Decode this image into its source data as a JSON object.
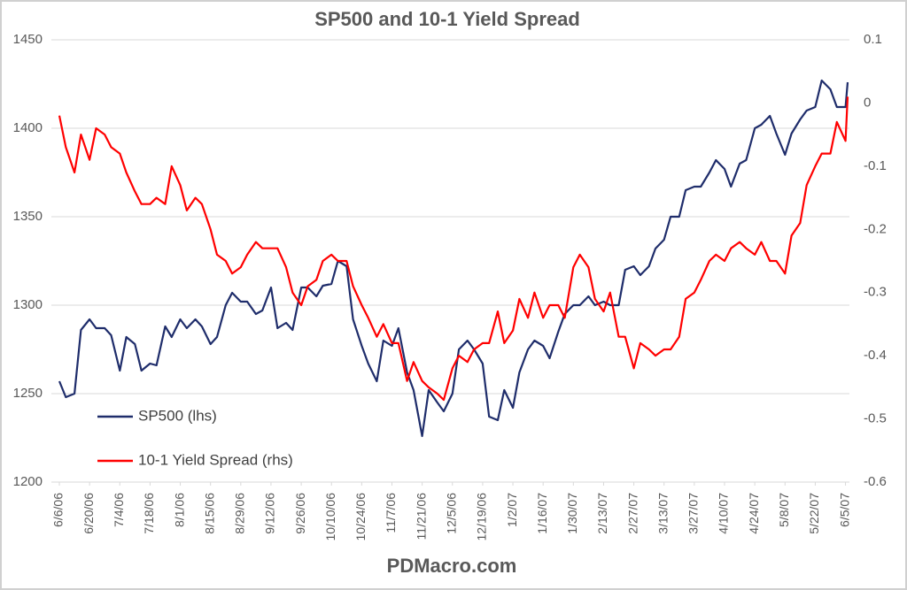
{
  "chart_data": {
    "type": "line",
    "title": "SP500 and 10-1 Yield Spread",
    "footer": "PDMacro.com",
    "legend": "lower left",
    "grid": true,
    "x": [
      "6/6/06",
      "6/9/06",
      "6/13/06",
      "6/16/06",
      "6/20/06",
      "6/23/06",
      "6/27/06",
      "6/30/06",
      "7/4/06",
      "7/7/06",
      "7/11/06",
      "7/14/06",
      "7/18/06",
      "7/21/06",
      "7/25/06",
      "7/28/06",
      "8/1/06",
      "8/4/06",
      "8/8/06",
      "8/11/06",
      "8/15/06",
      "8/18/06",
      "8/22/06",
      "8/25/06",
      "8/29/06",
      "9/1/06",
      "9/5/06",
      "9/8/06",
      "9/12/06",
      "9/15/06",
      "9/19/06",
      "9/22/06",
      "9/26/06",
      "9/29/06",
      "10/3/06",
      "10/6/06",
      "10/10/06",
      "10/13/06",
      "10/17/06",
      "10/20/06",
      "10/24/06",
      "10/27/06",
      "10/31/06",
      "11/3/06",
      "11/7/06",
      "11/10/06",
      "11/14/06",
      "11/17/06",
      "11/21/06",
      "11/24/06",
      "11/28/06",
      "12/1/06",
      "12/5/06",
      "12/8/06",
      "12/12/06",
      "12/15/06",
      "12/19/06",
      "12/22/06",
      "12/26/06",
      "12/29/06",
      "1/2/07",
      "1/5/07",
      "1/9/07",
      "1/12/07",
      "1/16/07",
      "1/19/07",
      "1/23/07",
      "1/26/07",
      "1/30/07",
      "2/2/07",
      "2/6/07",
      "2/9/07",
      "2/13/07",
      "2/16/07",
      "2/20/07",
      "2/23/07",
      "2/27/07",
      "3/2/07",
      "3/6/07",
      "3/9/07",
      "3/13/07",
      "3/16/07",
      "3/20/07",
      "3/23/07",
      "3/27/07",
      "3/30/07",
      "4/3/07",
      "4/6/07",
      "4/10/07",
      "4/13/07",
      "4/17/07",
      "4/20/07",
      "4/24/07",
      "4/27/07",
      "5/1/07",
      "5/4/07",
      "5/8/07",
      "5/11/07",
      "5/15/07",
      "5/18/07",
      "5/22/07",
      "5/25/07",
      "5/29/07",
      "6/1/07",
      "6/5/07",
      "6/6/07"
    ],
    "series": [
      {
        "name": "SP500 (lhs)",
        "color": "#1f2d6b",
        "axis": "y",
        "values": [
          1257,
          1248,
          1250,
          1286,
          1292,
          1287,
          1287,
          1283,
          1263,
          1282,
          1278,
          1263,
          1267,
          1266,
          1288,
          1282,
          1292,
          1287,
          1292,
          1288,
          1278,
          1282,
          1300,
          1307,
          1302,
          1302,
          1295,
          1297,
          1310,
          1287,
          1290,
          1286,
          1310,
          1310,
          1305,
          1311,
          1312,
          1325,
          1322,
          1292,
          1277,
          1267,
          1257,
          1280,
          1277,
          1287,
          1262,
          1252,
          1226,
          1252,
          1245,
          1240,
          1250,
          1275,
          1280,
          1275,
          1267,
          1237,
          1235,
          1252,
          1242,
          1262,
          1275,
          1280,
          1277,
          1270,
          1285,
          1295,
          1300,
          1300,
          1305,
          1300,
          1302,
          1300,
          1300,
          1320,
          1322,
          1317,
          1322,
          1332,
          1337,
          1350,
          1350,
          1365,
          1367,
          1367,
          1375,
          1382,
          1377,
          1367,
          1380,
          1382,
          1400,
          1402,
          1407,
          1397,
          1385,
          1397,
          1405,
          1410,
          1412,
          1427,
          1422,
          1412,
          1412,
          1426
        ]
      },
      {
        "name": "10-1 Yield Spread (rhs)",
        "color": "#ff0000",
        "axis": "y2",
        "values": [
          -0.02,
          -0.07,
          -0.11,
          -0.05,
          -0.09,
          -0.04,
          -0.05,
          -0.07,
          -0.08,
          -0.11,
          -0.14,
          -0.16,
          -0.16,
          -0.15,
          -0.16,
          -0.1,
          -0.13,
          -0.17,
          -0.15,
          -0.16,
          -0.2,
          -0.24,
          -0.25,
          -0.27,
          -0.26,
          -0.24,
          -0.22,
          -0.23,
          -0.23,
          -0.23,
          -0.26,
          -0.3,
          -0.32,
          -0.29,
          -0.28,
          -0.25,
          -0.24,
          -0.25,
          -0.25,
          -0.29,
          -0.32,
          -0.34,
          -0.37,
          -0.35,
          -0.38,
          -0.38,
          -0.44,
          -0.41,
          -0.44,
          -0.45,
          -0.46,
          -0.47,
          -0.42,
          -0.4,
          -0.41,
          -0.39,
          -0.38,
          -0.38,
          -0.33,
          -0.38,
          -0.36,
          -0.31,
          -0.34,
          -0.3,
          -0.34,
          -0.32,
          -0.32,
          -0.34,
          -0.26,
          -0.24,
          -0.26,
          -0.31,
          -0.33,
          -0.3,
          -0.37,
          -0.37,
          -0.42,
          -0.38,
          -0.39,
          -0.4,
          -0.39,
          -0.39,
          -0.37,
          -0.31,
          -0.3,
          -0.28,
          -0.25,
          -0.24,
          -0.25,
          -0.23,
          -0.22,
          -0.23,
          -0.24,
          -0.22,
          -0.25,
          -0.25,
          -0.27,
          -0.21,
          -0.19,
          -0.13,
          -0.1,
          -0.08,
          -0.08,
          -0.03,
          -0.06,
          0.01
        ]
      }
    ],
    "xlim": [
      "6/6/06",
      "6/6/07"
    ],
    "xticks": [
      "6/6/06",
      "6/20/06",
      "7/4/06",
      "7/18/06",
      "8/1/06",
      "8/15/06",
      "8/29/06",
      "9/12/06",
      "9/26/06",
      "10/10/06",
      "10/24/06",
      "11/7/06",
      "11/21/06",
      "12/5/06",
      "12/19/06",
      "1/2/07",
      "1/16/07",
      "1/30/07",
      "2/13/07",
      "2/27/07",
      "3/13/07",
      "3/27/07",
      "4/10/07",
      "4/24/07",
      "5/8/07",
      "5/22/07",
      "6/5/07"
    ],
    "ylim": [
      1200,
      1450
    ],
    "yticks": [
      1200,
      1250,
      1300,
      1350,
      1400,
      1450
    ],
    "y2lim": [
      -0.6,
      0.1
    ],
    "y2ticks": [
      -0.6,
      -0.5,
      -0.4,
      -0.3,
      -0.2,
      -0.1,
      0,
      0.1
    ]
  }
}
